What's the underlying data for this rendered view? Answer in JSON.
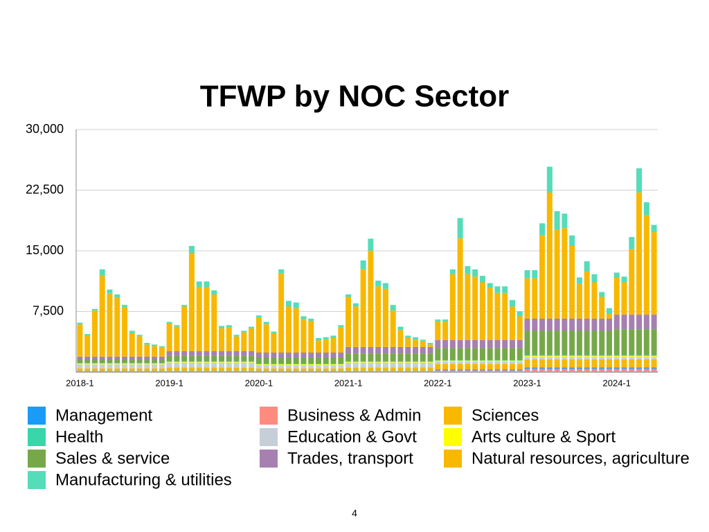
{
  "chart_data": {
    "type": "stacked_bar",
    "title": "TFWP by NOC Sector",
    "categories": [
      "2018-1",
      null,
      null,
      null,
      null,
      null,
      null,
      null,
      null,
      null,
      null,
      null,
      "2019-1",
      null,
      null,
      null,
      null,
      null,
      null,
      null,
      null,
      null,
      null,
      null,
      "2020-1",
      null,
      null,
      null,
      null,
      null,
      null,
      null,
      null,
      null,
      null,
      null,
      "2021-1",
      null,
      null,
      null,
      null,
      null,
      null,
      null,
      null,
      null,
      null,
      null,
      "2022-1",
      null,
      null,
      null,
      null,
      null,
      null,
      null,
      null,
      null,
      null,
      null,
      "2023-1",
      null,
      null,
      null,
      null,
      null,
      null,
      null,
      null,
      null,
      null,
      null,
      "2024-1",
      null,
      null,
      null,
      null,
      null
    ],
    "ylim": [
      0,
      30000
    ],
    "yticks": [
      {
        "value": 0,
        "label": ""
      },
      {
        "value": 7500,
        "label": "7,500"
      },
      {
        "value": 15000,
        "label": "15,000"
      },
      {
        "value": 22500,
        "label": "22,500"
      },
      {
        "value": 30000,
        "label": "30,000"
      }
    ],
    "grid": true,
    "series": [
      {
        "name": "Business & Admin",
        "color": "#ff8a80",
        "values": [
          100,
          100,
          100,
          100,
          100,
          100,
          100,
          100,
          100,
          100,
          100,
          100,
          100,
          100,
          100,
          100,
          100,
          100,
          100,
          100,
          100,
          100,
          100,
          100,
          100,
          100,
          100,
          100,
          100,
          100,
          100,
          100,
          100,
          100,
          100,
          100,
          100,
          100,
          100,
          100,
          100,
          100,
          100,
          100,
          100,
          100,
          100,
          100,
          200,
          200,
          200,
          200,
          200,
          200,
          200,
          200,
          200,
          200,
          200,
          200,
          400,
          400,
          400,
          400,
          400,
          400,
          400,
          400,
          400,
          400,
          400,
          400,
          400,
          400,
          400,
          400,
          400,
          400
        ]
      },
      {
        "name": "Management",
        "color": "#1a9bf5",
        "values": [
          50,
          50,
          50,
          50,
          50,
          50,
          50,
          50,
          50,
          50,
          50,
          50,
          50,
          50,
          50,
          50,
          50,
          50,
          50,
          50,
          50,
          50,
          50,
          50,
          50,
          50,
          50,
          50,
          50,
          50,
          50,
          50,
          50,
          50,
          50,
          50,
          50,
          50,
          50,
          50,
          50,
          50,
          50,
          50,
          50,
          50,
          50,
          50,
          100,
          100,
          100,
          100,
          100,
          100,
          100,
          100,
          100,
          100,
          100,
          100,
          150,
          150,
          150,
          150,
          150,
          150,
          150,
          150,
          150,
          150,
          150,
          150,
          150,
          150,
          150,
          150,
          150,
          150
        ]
      },
      {
        "name": "Sciences",
        "color": "#f8b800",
        "values": [
          300,
          300,
          300,
          300,
          300,
          300,
          300,
          300,
          300,
          300,
          300,
          300,
          400,
          400,
          400,
          400,
          400,
          400,
          400,
          400,
          400,
          400,
          400,
          400,
          300,
          300,
          300,
          300,
          300,
          300,
          300,
          300,
          300,
          300,
          300,
          300,
          400,
          400,
          400,
          400,
          400,
          400,
          400,
          400,
          400,
          400,
          400,
          400,
          700,
          700,
          700,
          700,
          700,
          700,
          700,
          700,
          700,
          700,
          700,
          700,
          1000,
          1000,
          1000,
          1000,
          1000,
          1000,
          1000,
          1000,
          1000,
          1000,
          1000,
          1000,
          1000,
          1000,
          1000,
          1000,
          1000,
          1000
        ]
      },
      {
        "name": "Education & Govt",
        "color": "#c6ced8",
        "values": [
          500,
          500,
          500,
          500,
          500,
          500,
          500,
          500,
          500,
          500,
          500,
          500,
          600,
          600,
          600,
          600,
          600,
          600,
          600,
          600,
          600,
          600,
          600,
          600,
          400,
          400,
          400,
          400,
          400,
          400,
          400,
          400,
          400,
          400,
          400,
          400,
          600,
          600,
          600,
          600,
          600,
          600,
          600,
          600,
          600,
          600,
          600,
          600,
          300,
          300,
          300,
          300,
          300,
          300,
          300,
          300,
          300,
          300,
          300,
          300,
          300,
          300,
          300,
          300,
          300,
          300,
          300,
          300,
          300,
          300,
          300,
          300,
          300,
          300,
          300,
          300,
          300,
          300
        ]
      },
      {
        "name": "Arts culture & Sport",
        "color": "#ffff00",
        "values": [
          100,
          100,
          100,
          100,
          100,
          100,
          100,
          100,
          100,
          100,
          100,
          100,
          100,
          100,
          100,
          100,
          100,
          100,
          100,
          100,
          100,
          100,
          100,
          100,
          100,
          100,
          100,
          100,
          100,
          100,
          100,
          100,
          100,
          100,
          100,
          100,
          100,
          100,
          100,
          100,
          100,
          100,
          100,
          100,
          100,
          100,
          100,
          100,
          100,
          100,
          100,
          100,
          100,
          100,
          100,
          100,
          100,
          100,
          100,
          100,
          150,
          150,
          150,
          150,
          150,
          150,
          150,
          150,
          150,
          150,
          150,
          150,
          150,
          150,
          150,
          150,
          150,
          150
        ]
      },
      {
        "name": "Health",
        "color": "#38d6a8",
        "values": [
          50,
          50,
          50,
          50,
          50,
          50,
          50,
          50,
          50,
          50,
          50,
          50,
          50,
          50,
          50,
          50,
          50,
          50,
          50,
          50,
          50,
          50,
          50,
          50,
          50,
          50,
          50,
          50,
          50,
          50,
          50,
          50,
          50,
          50,
          50,
          50,
          50,
          50,
          50,
          50,
          50,
          50,
          50,
          50,
          50,
          50,
          50,
          50,
          50,
          50,
          50,
          50,
          50,
          50,
          50,
          50,
          50,
          50,
          50,
          50,
          100,
          100,
          100,
          100,
          100,
          100,
          100,
          100,
          100,
          100,
          100,
          100,
          100,
          100,
          100,
          100,
          100,
          100
        ]
      },
      {
        "name": "Sales & service",
        "color": "#76a84a",
        "values": [
          400,
          400,
          400,
          400,
          400,
          400,
          400,
          400,
          400,
          400,
          400,
          400,
          700,
          700,
          700,
          700,
          700,
          700,
          700,
          700,
          700,
          700,
          700,
          700,
          800,
          800,
          800,
          800,
          800,
          800,
          800,
          800,
          800,
          800,
          800,
          800,
          1000,
          1000,
          1000,
          1000,
          1000,
          1000,
          1000,
          1000,
          1000,
          1000,
          1000,
          1000,
          1500,
          1500,
          1500,
          1500,
          1500,
          1500,
          1500,
          1500,
          1500,
          1500,
          1500,
          1500,
          3000,
          3000,
          3000,
          3000,
          3000,
          3000,
          3000,
          3000,
          3000,
          3000,
          3000,
          3000,
          3200,
          3200,
          3200,
          3200,
          3200,
          3200
        ]
      },
      {
        "name": "Trades, transport",
        "color": "#a680b0",
        "values": [
          400,
          400,
          400,
          400,
          400,
          400,
          400,
          400,
          400,
          400,
          400,
          400,
          600,
          600,
          600,
          600,
          600,
          600,
          600,
          600,
          600,
          600,
          600,
          600,
          600,
          600,
          600,
          600,
          600,
          600,
          600,
          600,
          600,
          600,
          600,
          600,
          800,
          800,
          800,
          800,
          800,
          800,
          800,
          800,
          800,
          800,
          800,
          800,
          1000,
          1000,
          1000,
          1000,
          1000,
          1000,
          1000,
          1000,
          1000,
          1000,
          1000,
          1000,
          1500,
          1500,
          1500,
          1500,
          1500,
          1500,
          1500,
          1500,
          1500,
          1500,
          1500,
          1500,
          1800,
          1800,
          1800,
          1800,
          1800,
          1800
        ]
      },
      {
        "name": "Natural resources, agriculture",
        "color": "#f8b800",
        "values": [
          4000,
          2600,
          5700,
          10100,
          7800,
          7300,
          6100,
          2900,
          2500,
          1500,
          1300,
          1200,
          3400,
          3000,
          5500,
          12100,
          7900,
          7900,
          7000,
          2800,
          2900,
          1800,
          2300,
          2800,
          4300,
          3500,
          2400,
          9800,
          5700,
          5500,
          4100,
          3900,
          1500,
          1600,
          1800,
          3100,
          6200,
          5000,
          9600,
          11900,
          7500,
          7200,
          4500,
          2100,
          1100,
          900,
          700,
          300,
          2250,
          2250,
          8150,
          12600,
          8150,
          7850,
          7150,
          6450,
          5850,
          5850,
          4150,
          2950,
          5000,
          5000,
          10300,
          15600,
          11000,
          11200,
          9000,
          4300,
          5800,
          4500,
          2700,
          600,
          4600,
          4000,
          8100,
          15100,
          12300,
          10200
        ]
      },
      {
        "name": "Manufacturing & utilities",
        "color": "#55dcb8",
        "values": [
          200,
          200,
          200,
          700,
          500,
          400,
          300,
          300,
          200,
          200,
          200,
          100,
          200,
          200,
          200,
          900,
          700,
          700,
          500,
          300,
          300,
          200,
          200,
          200,
          300,
          300,
          200,
          500,
          700,
          700,
          400,
          300,
          300,
          300,
          300,
          300,
          300,
          400,
          1100,
          1500,
          700,
          700,
          700,
          400,
          300,
          300,
          200,
          200,
          300,
          300,
          600,
          2500,
          1000,
          900,
          800,
          600,
          800,
          800,
          800,
          600,
          1000,
          1000,
          1500,
          3200,
          2300,
          1800,
          1300,
          800,
          1300,
          1000,
          600,
          700,
          600,
          700,
          1500,
          3000,
          1600,
          900
        ]
      }
    ],
    "page_number": "4"
  }
}
